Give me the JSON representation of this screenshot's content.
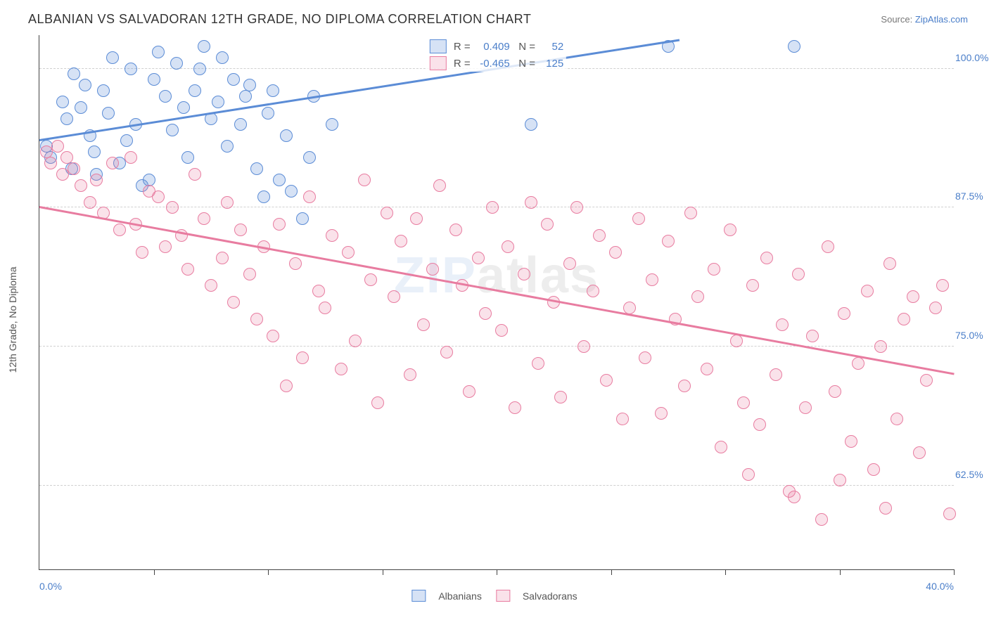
{
  "chart": {
    "type": "scatter",
    "title": "ALBANIAN VS SALVADORAN 12TH GRADE, NO DIPLOMA CORRELATION CHART",
    "source_label": "Source:",
    "source_name": "ZipAtlas.com",
    "yaxis_title": "12th Grade, No Diploma",
    "watermark": "ZIPatlas",
    "background_color": "#ffffff",
    "grid_color": "#d0d0d0",
    "axis_color": "#444444",
    "title_fontsize": 18,
    "label_fontsize": 14,
    "tick_color": "#4a7ec9",
    "xlim": [
      0,
      40
    ],
    "ylim": [
      55,
      103
    ],
    "yticks": [
      62.5,
      75.0,
      87.5,
      100.0
    ],
    "ytick_labels": [
      "62.5%",
      "75.0%",
      "87.5%",
      "100.0%"
    ],
    "xticks": [
      0,
      5,
      10,
      15,
      20,
      25,
      30,
      35,
      40
    ],
    "xtick_labels_visible": [
      {
        "value": 0,
        "label": "0.0%"
      },
      {
        "value": 40,
        "label": "40.0%"
      }
    ],
    "marker_radius": 9,
    "marker_stroke_width": 1.5,
    "marker_fill_opacity": 0.2,
    "series": [
      {
        "name": "Albanians",
        "color": "#5b8cd6",
        "fill": "rgba(91,140,214,0.25)",
        "R": "0.409",
        "N": "52",
        "trend": {
          "x1": 0,
          "y1": 93.5,
          "x2": 28,
          "y2": 102.5,
          "line_width": 2.5
        },
        "points": [
          [
            0.3,
            93.0
          ],
          [
            0.5,
            92.0
          ],
          [
            1.0,
            97.0
          ],
          [
            1.2,
            95.5
          ],
          [
            1.4,
            91.0
          ],
          [
            1.5,
            99.5
          ],
          [
            1.8,
            96.5
          ],
          [
            2.0,
            98.5
          ],
          [
            2.2,
            94.0
          ],
          [
            2.4,
            92.5
          ],
          [
            2.5,
            90.5
          ],
          [
            2.8,
            98.0
          ],
          [
            3.0,
            96.0
          ],
          [
            3.2,
            101.0
          ],
          [
            3.5,
            91.5
          ],
          [
            3.8,
            93.5
          ],
          [
            4.0,
            100.0
          ],
          [
            4.2,
            95.0
          ],
          [
            4.5,
            89.5
          ],
          [
            4.8,
            90.0
          ],
          [
            5.0,
            99.0
          ],
          [
            5.2,
            101.5
          ],
          [
            5.5,
            97.5
          ],
          [
            5.8,
            94.5
          ],
          [
            6.0,
            100.5
          ],
          [
            6.3,
            96.5
          ],
          [
            6.5,
            92.0
          ],
          [
            6.8,
            98.0
          ],
          [
            7.0,
            100.0
          ],
          [
            7.2,
            102.0
          ],
          [
            7.5,
            95.5
          ],
          [
            7.8,
            97.0
          ],
          [
            8.0,
            101.0
          ],
          [
            8.2,
            93.0
          ],
          [
            8.5,
            99.0
          ],
          [
            8.8,
            95.0
          ],
          [
            9.0,
            97.5
          ],
          [
            9.2,
            98.5
          ],
          [
            9.5,
            91.0
          ],
          [
            9.8,
            88.5
          ],
          [
            10.0,
            96.0
          ],
          [
            10.2,
            98.0
          ],
          [
            10.5,
            90.0
          ],
          [
            10.8,
            94.0
          ],
          [
            11.0,
            89.0
          ],
          [
            11.5,
            86.5
          ],
          [
            11.8,
            92.0
          ],
          [
            12.0,
            97.5
          ],
          [
            12.8,
            95.0
          ],
          [
            21.5,
            95.0
          ],
          [
            27.5,
            102.0
          ],
          [
            33.0,
            102.0
          ]
        ]
      },
      {
        "name": "Salvadorans",
        "color": "#e87ca0",
        "fill": "rgba(232,124,160,0.22)",
        "R": "-0.465",
        "N": "125",
        "trend": {
          "x1": 0,
          "y1": 87.5,
          "x2": 40,
          "y2": 72.5,
          "line_width": 2.5
        },
        "points": [
          [
            0.3,
            92.5
          ],
          [
            0.5,
            91.5
          ],
          [
            0.8,
            93.0
          ],
          [
            1.0,
            90.5
          ],
          [
            1.2,
            92.0
          ],
          [
            1.5,
            91.0
          ],
          [
            1.8,
            89.5
          ],
          [
            2.2,
            88.0
          ],
          [
            2.5,
            90.0
          ],
          [
            2.8,
            87.0
          ],
          [
            3.2,
            91.5
          ],
          [
            3.5,
            85.5
          ],
          [
            4.0,
            92.0
          ],
          [
            4.2,
            86.0
          ],
          [
            4.5,
            83.5
          ],
          [
            4.8,
            89.0
          ],
          [
            5.2,
            88.5
          ],
          [
            5.5,
            84.0
          ],
          [
            5.8,
            87.5
          ],
          [
            6.2,
            85.0
          ],
          [
            6.5,
            82.0
          ],
          [
            6.8,
            90.5
          ],
          [
            7.2,
            86.5
          ],
          [
            7.5,
            80.5
          ],
          [
            8.0,
            83.0
          ],
          [
            8.2,
            88.0
          ],
          [
            8.5,
            79.0
          ],
          [
            8.8,
            85.5
          ],
          [
            9.2,
            81.5
          ],
          [
            9.5,
            77.5
          ],
          [
            9.8,
            84.0
          ],
          [
            10.2,
            76.0
          ],
          [
            10.5,
            86.0
          ],
          [
            10.8,
            71.5
          ],
          [
            11.2,
            82.5
          ],
          [
            11.5,
            74.0
          ],
          [
            11.8,
            88.5
          ],
          [
            12.2,
            80.0
          ],
          [
            12.5,
            78.5
          ],
          [
            12.8,
            85.0
          ],
          [
            13.2,
            73.0
          ],
          [
            13.5,
            83.5
          ],
          [
            13.8,
            75.5
          ],
          [
            14.2,
            90.0
          ],
          [
            14.5,
            81.0
          ],
          [
            14.8,
            70.0
          ],
          [
            15.2,
            87.0
          ],
          [
            15.5,
            79.5
          ],
          [
            15.8,
            84.5
          ],
          [
            16.2,
            72.5
          ],
          [
            16.5,
            86.5
          ],
          [
            16.8,
            77.0
          ],
          [
            17.2,
            82.0
          ],
          [
            17.5,
            89.5
          ],
          [
            17.8,
            74.5
          ],
          [
            18.2,
            85.5
          ],
          [
            18.5,
            80.5
          ],
          [
            18.8,
            71.0
          ],
          [
            19.2,
            83.0
          ],
          [
            19.5,
            78.0
          ],
          [
            19.8,
            87.5
          ],
          [
            20.2,
            76.5
          ],
          [
            20.5,
            84.0
          ],
          [
            20.8,
            69.5
          ],
          [
            21.2,
            81.5
          ],
          [
            21.5,
            88.0
          ],
          [
            21.8,
            73.5
          ],
          [
            22.2,
            86.0
          ],
          [
            22.5,
            79.0
          ],
          [
            22.8,
            70.5
          ],
          [
            23.2,
            82.5
          ],
          [
            23.5,
            87.5
          ],
          [
            23.8,
            75.0
          ],
          [
            24.2,
            80.0
          ],
          [
            24.5,
            85.0
          ],
          [
            24.8,
            72.0
          ],
          [
            25.2,
            83.5
          ],
          [
            25.5,
            68.5
          ],
          [
            25.8,
            78.5
          ],
          [
            26.2,
            86.5
          ],
          [
            26.5,
            74.0
          ],
          [
            26.8,
            81.0
          ],
          [
            27.2,
            69.0
          ],
          [
            27.5,
            84.5
          ],
          [
            27.8,
            77.5
          ],
          [
            28.2,
            71.5
          ],
          [
            28.5,
            87.0
          ],
          [
            28.8,
            79.5
          ],
          [
            29.2,
            73.0
          ],
          [
            29.5,
            82.0
          ],
          [
            29.8,
            66.0
          ],
          [
            30.2,
            85.5
          ],
          [
            30.5,
            75.5
          ],
          [
            30.8,
            70.0
          ],
          [
            31.2,
            80.5
          ],
          [
            31.5,
            68.0
          ],
          [
            31.8,
            83.0
          ],
          [
            32.2,
            72.5
          ],
          [
            32.5,
            77.0
          ],
          [
            32.8,
            62.0
          ],
          [
            33.2,
            81.5
          ],
          [
            33.5,
            69.5
          ],
          [
            33.8,
            76.0
          ],
          [
            34.2,
            59.5
          ],
          [
            34.5,
            84.0
          ],
          [
            34.8,
            71.0
          ],
          [
            35.2,
            78.0
          ],
          [
            35.5,
            66.5
          ],
          [
            35.8,
            73.5
          ],
          [
            36.2,
            80.0
          ],
          [
            36.5,
            64.0
          ],
          [
            36.8,
            75.0
          ],
          [
            37.2,
            82.5
          ],
          [
            37.5,
            68.5
          ],
          [
            37.8,
            77.5
          ],
          [
            38.2,
            79.5
          ],
          [
            38.5,
            65.5
          ],
          [
            38.8,
            72.0
          ],
          [
            39.2,
            78.5
          ],
          [
            39.5,
            80.5
          ],
          [
            39.8,
            60.0
          ],
          [
            37.0,
            60.5
          ],
          [
            35.0,
            63.0
          ],
          [
            33.0,
            61.5
          ],
          [
            31.0,
            63.5
          ]
        ]
      }
    ],
    "bottom_legend": [
      {
        "label": "Albanians"
      },
      {
        "label": "Salvadorans"
      }
    ]
  }
}
